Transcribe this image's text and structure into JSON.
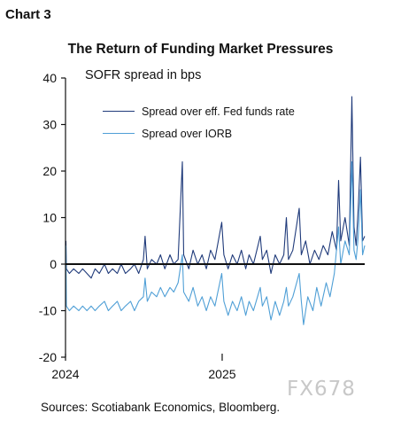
{
  "chart_label": "Chart 3",
  "watermark": "FX678",
  "source": "Sources: Scotiabank Economics, Bloomberg.",
  "chart_data": {
    "type": "line",
    "title": "The Return of Funding Market Pressures",
    "ylabel": "SOFR spread in bps",
    "xlabel": "",
    "ylim": [
      -20,
      40
    ],
    "yticks": [
      -20,
      -10,
      0,
      10,
      20,
      30,
      40
    ],
    "xtick_labels": [
      {
        "label": "2024",
        "date": "2024-01-01"
      },
      {
        "label": "2025",
        "date": "2025-01-01"
      }
    ],
    "x_range": [
      "2024-01-01",
      "2025-11-30"
    ],
    "grid": false,
    "legend_position": "top-left",
    "colors": {
      "fed_funds": "#1f3a7a",
      "iorb": "#4f9fd6"
    },
    "series": [
      {
        "name": "Spread over eff. Fed funds rate",
        "color": "#1f3a7a",
        "points": [
          [
            "2024-01-02",
            5
          ],
          [
            "2024-01-03",
            -1
          ],
          [
            "2024-01-10",
            -2
          ],
          [
            "2024-01-20",
            -1
          ],
          [
            "2024-02-01",
            -2
          ],
          [
            "2024-02-10",
            -1
          ],
          [
            "2024-02-20",
            -2
          ],
          [
            "2024-03-01",
            -3
          ],
          [
            "2024-03-10",
            -1
          ],
          [
            "2024-03-20",
            -2
          ],
          [
            "2024-04-01",
            0
          ],
          [
            "2024-04-10",
            -2
          ],
          [
            "2024-04-20",
            -1
          ],
          [
            "2024-05-01",
            -2
          ],
          [
            "2024-05-10",
            0
          ],
          [
            "2024-05-20",
            -2
          ],
          [
            "2024-06-01",
            -1
          ],
          [
            "2024-06-10",
            0
          ],
          [
            "2024-06-20",
            -2
          ],
          [
            "2024-07-01",
            1
          ],
          [
            "2024-07-05",
            6
          ],
          [
            "2024-07-10",
            -1
          ],
          [
            "2024-07-20",
            1
          ],
          [
            "2024-08-01",
            0
          ],
          [
            "2024-08-10",
            2
          ],
          [
            "2024-08-20",
            -1
          ],
          [
            "2024-09-01",
            2
          ],
          [
            "2024-09-10",
            0
          ],
          [
            "2024-09-20",
            1
          ],
          [
            "2024-09-30",
            22
          ],
          [
            "2024-10-03",
            2
          ],
          [
            "2024-10-15",
            -1
          ],
          [
            "2024-10-25",
            3
          ],
          [
            "2024-11-05",
            0
          ],
          [
            "2024-11-15",
            2
          ],
          [
            "2024-11-25",
            -1
          ],
          [
            "2024-12-05",
            3
          ],
          [
            "2024-12-15",
            1
          ],
          [
            "2024-12-31",
            9
          ],
          [
            "2025-01-05",
            2
          ],
          [
            "2025-01-15",
            -1
          ],
          [
            "2025-01-25",
            2
          ],
          [
            "2025-02-05",
            0
          ],
          [
            "2025-02-15",
            3
          ],
          [
            "2025-02-25",
            -1
          ],
          [
            "2025-03-05",
            2
          ],
          [
            "2025-03-15",
            0
          ],
          [
            "2025-03-31",
            6
          ],
          [
            "2025-04-05",
            1
          ],
          [
            "2025-04-15",
            3
          ],
          [
            "2025-04-25",
            -2
          ],
          [
            "2025-05-05",
            2
          ],
          [
            "2025-05-15",
            0
          ],
          [
            "2025-05-25",
            2
          ],
          [
            "2025-05-31",
            10
          ],
          [
            "2025-06-05",
            1
          ],
          [
            "2025-06-15",
            3
          ],
          [
            "2025-06-30",
            12
          ],
          [
            "2025-07-05",
            2
          ],
          [
            "2025-07-15",
            5
          ],
          [
            "2025-07-25",
            0
          ],
          [
            "2025-08-05",
            3
          ],
          [
            "2025-08-15",
            1
          ],
          [
            "2025-08-25",
            4
          ],
          [
            "2025-09-05",
            2
          ],
          [
            "2025-09-15",
            7
          ],
          [
            "2025-09-25",
            3
          ],
          [
            "2025-09-30",
            18
          ],
          [
            "2025-10-05",
            5
          ],
          [
            "2025-10-15",
            10
          ],
          [
            "2025-10-25",
            4
          ],
          [
            "2025-10-31",
            36
          ],
          [
            "2025-11-05",
            8
          ],
          [
            "2025-11-10",
            4
          ],
          [
            "2025-11-15",
            12
          ],
          [
            "2025-11-20",
            23
          ],
          [
            "2025-11-25",
            5
          ],
          [
            "2025-11-30",
            6
          ]
        ]
      },
      {
        "name": "Spread over IORB",
        "color": "#4f9fd6",
        "points": [
          [
            "2024-01-02",
            4
          ],
          [
            "2024-01-03",
            -9
          ],
          [
            "2024-01-10",
            -10
          ],
          [
            "2024-01-20",
            -9
          ],
          [
            "2024-02-01",
            -10
          ],
          [
            "2024-02-10",
            -9
          ],
          [
            "2024-02-20",
            -10
          ],
          [
            "2024-03-01",
            -9
          ],
          [
            "2024-03-10",
            -10
          ],
          [
            "2024-03-20",
            -9
          ],
          [
            "2024-04-01",
            -8
          ],
          [
            "2024-04-10",
            -10
          ],
          [
            "2024-04-20",
            -9
          ],
          [
            "2024-05-01",
            -8
          ],
          [
            "2024-05-10",
            -10
          ],
          [
            "2024-05-20",
            -9
          ],
          [
            "2024-06-01",
            -8
          ],
          [
            "2024-06-10",
            -10
          ],
          [
            "2024-06-20",
            -8
          ],
          [
            "2024-07-01",
            -7
          ],
          [
            "2024-07-05",
            -3
          ],
          [
            "2024-07-10",
            -8
          ],
          [
            "2024-07-20",
            -6
          ],
          [
            "2024-08-01",
            -7
          ],
          [
            "2024-08-10",
            -5
          ],
          [
            "2024-08-20",
            -7
          ],
          [
            "2024-09-01",
            -5
          ],
          [
            "2024-09-10",
            -6
          ],
          [
            "2024-09-20",
            -4
          ],
          [
            "2024-09-30",
            2
          ],
          [
            "2024-10-03",
            -6
          ],
          [
            "2024-10-15",
            -8
          ],
          [
            "2024-10-25",
            -5
          ],
          [
            "2024-11-05",
            -9
          ],
          [
            "2024-11-15",
            -7
          ],
          [
            "2024-11-25",
            -10
          ],
          [
            "2024-12-05",
            -7
          ],
          [
            "2024-12-15",
            -9
          ],
          [
            "2024-12-31",
            -2
          ],
          [
            "2025-01-05",
            -8
          ],
          [
            "2025-01-15",
            -11
          ],
          [
            "2025-01-25",
            -8
          ],
          [
            "2025-02-05",
            -10
          ],
          [
            "2025-02-15",
            -7
          ],
          [
            "2025-02-25",
            -11
          ],
          [
            "2025-03-05",
            -8
          ],
          [
            "2025-03-15",
            -10
          ],
          [
            "2025-03-31",
            -5
          ],
          [
            "2025-04-05",
            -9
          ],
          [
            "2025-04-15",
            -7
          ],
          [
            "2025-04-25",
            -12
          ],
          [
            "2025-05-05",
            -8
          ],
          [
            "2025-05-15",
            -11
          ],
          [
            "2025-05-25",
            -8
          ],
          [
            "2025-05-31",
            -5
          ],
          [
            "2025-06-05",
            -9
          ],
          [
            "2025-06-15",
            -7
          ],
          [
            "2025-06-30",
            -2
          ],
          [
            "2025-07-05",
            -8
          ],
          [
            "2025-07-10",
            -13
          ],
          [
            "2025-07-20",
            -7
          ],
          [
            "2025-08-01",
            -10
          ],
          [
            "2025-08-10",
            -5
          ],
          [
            "2025-08-20",
            -9
          ],
          [
            "2025-09-01",
            -4
          ],
          [
            "2025-09-10",
            -7
          ],
          [
            "2025-09-20",
            -2
          ],
          [
            "2025-09-30",
            8
          ],
          [
            "2025-10-05",
            0
          ],
          [
            "2025-10-15",
            5
          ],
          [
            "2025-10-25",
            2
          ],
          [
            "2025-10-31",
            22
          ],
          [
            "2025-11-05",
            3
          ],
          [
            "2025-11-10",
            1
          ],
          [
            "2025-11-15",
            6
          ],
          [
            "2025-11-20",
            16
          ],
          [
            "2025-11-25",
            2
          ],
          [
            "2025-11-30",
            4
          ]
        ]
      }
    ]
  }
}
